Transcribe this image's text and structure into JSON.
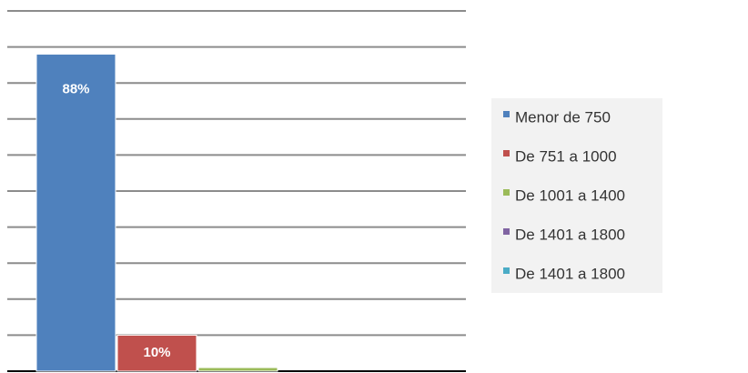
{
  "chart_data": {
    "type": "bar",
    "series": [
      {
        "name": "Menor de 750",
        "color": "#4f81bd",
        "values": [
          88
        ],
        "value_labels": [
          "88%"
        ]
      },
      {
        "name": "De 751 a 1000",
        "color": "#c0504d",
        "values": [
          10
        ],
        "value_labels": [
          "10%"
        ]
      },
      {
        "name": "De 1001 a 1400",
        "color": "#9bbb59",
        "values": [
          1
        ]
      },
      {
        "name": "De 1401 a 1800",
        "color": "#8064a2",
        "values": [
          0
        ]
      },
      {
        "name": "De 1401 a 1800",
        "color": "#4bacc6",
        "values": [
          0
        ]
      }
    ],
    "ylim": [
      0,
      100
    ],
    "yticks": [
      0,
      10,
      20,
      30,
      40,
      50,
      60,
      70,
      80,
      90,
      100
    ],
    "grid": true,
    "legend": "right"
  }
}
